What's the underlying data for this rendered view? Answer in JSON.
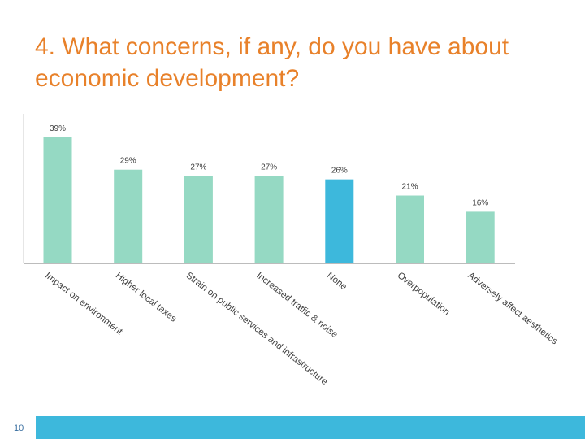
{
  "slide": {
    "title_line1": "4. What concerns, if any, do you have about",
    "title_line2": "economic development?",
    "number": "10"
  },
  "colors": {
    "bar": "#95d9c3",
    "highlight_bar": "#3db8dc",
    "title": "#e8812a",
    "footer": "#3db8dc"
  },
  "chart_data": {
    "type": "bar",
    "categories": [
      "Impact on environment",
      "Higher local taxes",
      "Strain on public services and infrastructure",
      "Increased traffic & noise",
      "None",
      "Overpopulation",
      "Adversely affect aesthetics"
    ],
    "values": [
      39,
      29,
      27,
      27,
      26,
      21,
      16
    ],
    "data_labels": [
      "39%",
      "29%",
      "27%",
      "27%",
      "26%",
      "21%",
      "16%"
    ],
    "highlight": "None",
    "ylim": [
      0,
      40
    ],
    "grid": false,
    "title": "",
    "xlabel": "",
    "ylabel": ""
  }
}
